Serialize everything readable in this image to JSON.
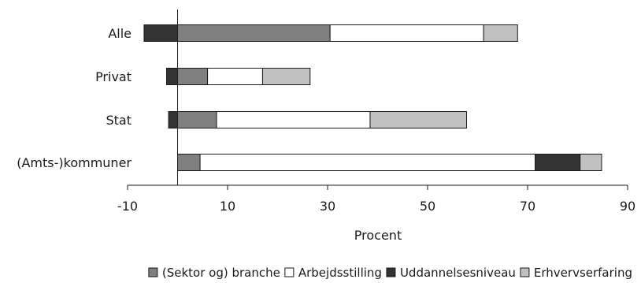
{
  "chart_data": {
    "type": "bar",
    "orientation": "horizontal",
    "stacked": true,
    "categories": [
      "Alle",
      "Privat",
      "Stat",
      "(Amts-)kommuner"
    ],
    "xlabel": "Procent",
    "xlim": [
      -10,
      90
    ],
    "xticks": [
      -10,
      10,
      30,
      50,
      70,
      90
    ],
    "grid": false,
    "legend_position": "bottom",
    "series": [
      {
        "name": "(Sektor og) branche",
        "color": "#808080",
        "segments": [
          [
            0,
            30.5
          ],
          [
            0,
            6
          ],
          [
            0,
            7.8
          ],
          [
            0,
            4.5
          ]
        ]
      },
      {
        "name": "Arbejdsstilling",
        "color": "#ffffff",
        "segments": [
          [
            30.5,
            61.2
          ],
          [
            6,
            17
          ],
          [
            7.8,
            38.5
          ],
          [
            4.5,
            71.5
          ]
        ]
      },
      {
        "name": "Uddannelsesniveau",
        "color": "#333333",
        "segments": [
          [
            -6.7,
            0
          ],
          [
            -2.2,
            0
          ],
          [
            -1.8,
            0
          ],
          [
            71.5,
            80.5
          ]
        ]
      },
      {
        "name": "Erhvervserfaring",
        "color": "#c0c0c0",
        "segments": [
          [
            61.2,
            68
          ],
          [
            17,
            26.5
          ],
          [
            38.5,
            57.8
          ],
          [
            80.5,
            84.8
          ]
        ]
      }
    ]
  }
}
